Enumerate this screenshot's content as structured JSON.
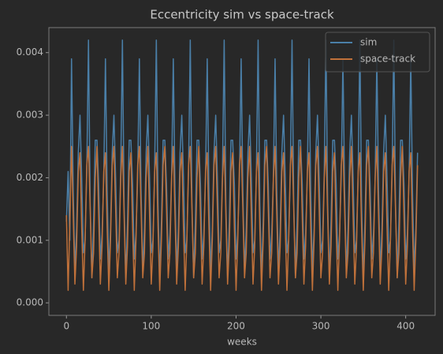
{
  "chart_data": {
    "type": "line",
    "title": "Eccentricity sim vs space-track",
    "x_label": "weeks",
    "x": [
      0,
      2,
      4,
      6,
      8,
      10,
      12,
      14,
      16,
      18,
      20,
      22,
      24,
      26,
      28,
      30,
      32,
      34,
      36,
      38,
      40,
      42,
      44,
      46,
      48,
      50,
      52,
      54,
      56,
      58,
      60,
      62,
      64,
      66,
      68,
      70,
      72,
      74,
      76,
      78,
      80,
      82,
      84,
      86,
      88,
      90,
      92,
      94,
      96,
      98,
      100,
      102,
      104,
      106,
      108,
      110,
      112,
      114,
      116,
      118,
      120,
      122,
      124,
      126,
      128,
      130,
      132,
      134,
      136,
      138,
      140,
      142,
      144,
      146,
      148,
      150,
      152,
      154,
      156,
      158,
      160,
      162,
      164,
      166,
      168,
      170,
      172,
      174,
      176,
      178,
      180,
      182,
      184,
      186,
      188,
      190,
      192,
      194,
      196,
      198,
      200,
      202,
      204,
      206,
      208,
      210,
      212,
      214,
      216,
      218,
      220,
      222,
      224,
      226,
      228,
      230,
      232,
      234,
      236,
      238,
      240,
      242,
      244,
      246,
      248,
      250,
      252,
      254,
      256,
      258,
      260,
      262,
      264,
      266,
      268,
      270,
      272,
      274,
      276,
      278,
      280,
      282,
      284,
      286,
      288,
      290,
      292,
      294,
      296,
      298,
      300,
      302,
      304,
      306,
      308,
      310,
      312,
      314,
      316,
      318,
      320,
      322,
      324,
      326,
      328,
      330,
      332,
      334,
      336,
      338,
      340,
      342,
      344,
      346,
      348,
      350,
      352,
      354,
      356,
      358,
      360,
      362,
      364,
      366,
      368,
      370,
      372,
      374,
      376,
      378,
      380,
      382,
      384,
      386,
      388,
      390,
      392,
      394,
      396,
      398,
      400,
      402,
      404,
      406,
      408,
      410,
      412,
      414
    ],
    "series": [
      {
        "name": "sim",
        "color": "#4a7fa8",
        "values": [
          0.0013,
          0.0021,
          0.001,
          0.0039,
          0.0018,
          0.0005,
          0.0012,
          0.0024,
          0.003,
          0.002,
          0.0008,
          0.001,
          0.0021,
          0.0042,
          0.0016,
          0.0004,
          0.0013,
          0.0026,
          0.0026,
          0.0019,
          0.0007,
          0.0011,
          0.002,
          0.0039,
          0.0018,
          0.0005,
          0.0012,
          0.0024,
          0.003,
          0.002,
          0.0008,
          0.001,
          0.0021,
          0.0042,
          0.0016,
          0.0004,
          0.0013,
          0.0026,
          0.0026,
          0.0019,
          0.0007,
          0.0011,
          0.002,
          0.0039,
          0.0018,
          0.0005,
          0.0012,
          0.0024,
          0.003,
          0.002,
          0.0008,
          0.001,
          0.0021,
          0.0042,
          0.0016,
          0.0004,
          0.0013,
          0.0026,
          0.0026,
          0.0019,
          0.0007,
          0.0011,
          0.002,
          0.0039,
          0.0018,
          0.0005,
          0.0012,
          0.0024,
          0.003,
          0.002,
          0.0008,
          0.001,
          0.0021,
          0.0042,
          0.0016,
          0.0004,
          0.0013,
          0.0026,
          0.0026,
          0.0019,
          0.0007,
          0.0011,
          0.002,
          0.0039,
          0.0018,
          0.0005,
          0.0012,
          0.0024,
          0.003,
          0.002,
          0.0008,
          0.001,
          0.0021,
          0.0042,
          0.0016,
          0.0004,
          0.0013,
          0.0026,
          0.0026,
          0.0019,
          0.0007,
          0.0011,
          0.002,
          0.0039,
          0.0018,
          0.0005,
          0.0012,
          0.0024,
          0.003,
          0.002,
          0.0008,
          0.001,
          0.0021,
          0.0042,
          0.0016,
          0.0004,
          0.0013,
          0.0026,
          0.0026,
          0.0019,
          0.0007,
          0.0011,
          0.002,
          0.0039,
          0.0018,
          0.0005,
          0.0012,
          0.0024,
          0.003,
          0.002,
          0.0008,
          0.001,
          0.0021,
          0.0042,
          0.0016,
          0.0004,
          0.0013,
          0.0026,
          0.0026,
          0.0019,
          0.0007,
          0.0011,
          0.002,
          0.0039,
          0.0018,
          0.0005,
          0.0012,
          0.0024,
          0.003,
          0.002,
          0.0008,
          0.001,
          0.0021,
          0.0042,
          0.0016,
          0.0004,
          0.0013,
          0.0026,
          0.0026,
          0.0019,
          0.0007,
          0.0011,
          0.002,
          0.0039,
          0.0018,
          0.0005,
          0.0012,
          0.0024,
          0.003,
          0.002,
          0.0008,
          0.001,
          0.0021,
          0.0042,
          0.0016,
          0.0004,
          0.0013,
          0.0026,
          0.0026,
          0.0019,
          0.0007,
          0.0011,
          0.002,
          0.0039,
          0.0018,
          0.0005,
          0.0012,
          0.0024,
          0.003,
          0.002,
          0.0008,
          0.001,
          0.0021,
          0.0042,
          0.0016,
          0.0004,
          0.0013,
          0.0026,
          0.0026,
          0.0019,
          0.0007,
          0.0011,
          0.002,
          0.0039,
          0.0018,
          0.0005,
          0.0012,
          0.0024
        ]
      },
      {
        "name": "space-track",
        "color": "#c0713a",
        "values": [
          0.0014,
          0.0002,
          0.0013,
          0.0025,
          0.0014,
          0.0003,
          0.0009,
          0.0021,
          0.0024,
          0.0012,
          0.0002,
          0.001,
          0.0022,
          0.0025,
          0.0015,
          0.0004,
          0.0008,
          0.002,
          0.0025,
          0.0014,
          0.0003,
          0.0009,
          0.0021,
          0.0024,
          0.0012,
          0.0002,
          0.001,
          0.0022,
          0.0025,
          0.0015,
          0.0004,
          0.0008,
          0.002,
          0.0025,
          0.0014,
          0.0003,
          0.0009,
          0.0021,
          0.0024,
          0.0012,
          0.0002,
          0.001,
          0.0022,
          0.0025,
          0.0015,
          0.0004,
          0.0008,
          0.002,
          0.0025,
          0.0014,
          0.0003,
          0.0009,
          0.0021,
          0.0024,
          0.0012,
          0.0002,
          0.001,
          0.0022,
          0.0025,
          0.0015,
          0.0004,
          0.0008,
          0.002,
          0.0025,
          0.0014,
          0.0003,
          0.0009,
          0.0021,
          0.0024,
          0.0012,
          0.0002,
          0.001,
          0.0022,
          0.0025,
          0.0015,
          0.0004,
          0.0008,
          0.002,
          0.0025,
          0.0014,
          0.0003,
          0.0009,
          0.0021,
          0.0024,
          0.0012,
          0.0002,
          0.001,
          0.0022,
          0.0025,
          0.0015,
          0.0004,
          0.0008,
          0.002,
          0.0025,
          0.0014,
          0.0003,
          0.0009,
          0.0021,
          0.0024,
          0.0012,
          0.0002,
          0.001,
          0.0022,
          0.0025,
          0.0015,
          0.0004,
          0.0008,
          0.002,
          0.0025,
          0.0014,
          0.0003,
          0.0009,
          0.0021,
          0.0024,
          0.0012,
          0.0002,
          0.001,
          0.0022,
          0.0025,
          0.0015,
          0.0004,
          0.0008,
          0.002,
          0.0025,
          0.0014,
          0.0003,
          0.0009,
          0.0021,
          0.0024,
          0.0012,
          0.0002,
          0.001,
          0.0022,
          0.0025,
          0.0015,
          0.0004,
          0.0008,
          0.002,
          0.0025,
          0.0014,
          0.0003,
          0.0009,
          0.0021,
          0.0024,
          0.0012,
          0.0002,
          0.001,
          0.0022,
          0.0025,
          0.0015,
          0.0004,
          0.0008,
          0.002,
          0.0025,
          0.0014,
          0.0003,
          0.0009,
          0.0021,
          0.0024,
          0.0012,
          0.0002,
          0.001,
          0.0022,
          0.0025,
          0.0015,
          0.0004,
          0.0008,
          0.002,
          0.0025,
          0.0014,
          0.0003,
          0.0009,
          0.0021,
          0.0024,
          0.0012,
          0.0002,
          0.001,
          0.0022,
          0.0025,
          0.0015,
          0.0004,
          0.0008,
          0.002,
          0.0025,
          0.0014,
          0.0003,
          0.0009,
          0.0021,
          0.0024,
          0.0012,
          0.0002,
          0.001,
          0.0022,
          0.0025,
          0.0015,
          0.0004,
          0.0008,
          0.002,
          0.0025,
          0.0014,
          0.0003,
          0.0009,
          0.0021,
          0.0024,
          0.0012,
          0.0002,
          0.001,
          0.0022
        ]
      }
    ],
    "xlim": [
      -20.7,
      434.7
    ],
    "xticks": [
      0,
      100,
      200,
      300,
      400
    ],
    "ylim": [
      -0.0002,
      0.0044
    ],
    "yticks": [
      {
        "value": 0,
        "label": "0.000"
      },
      {
        "value": 0.001,
        "label": "0.001"
      },
      {
        "value": 0.002,
        "label": "0.002"
      },
      {
        "value": 0.003,
        "label": "0.003"
      },
      {
        "value": 0.004,
        "label": "0.004"
      }
    ],
    "legend": "upper right"
  }
}
